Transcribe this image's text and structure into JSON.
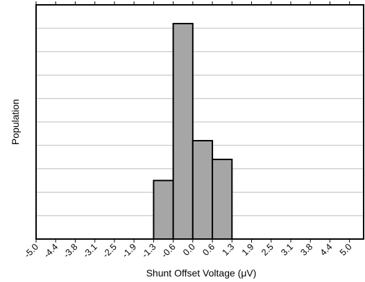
{
  "chart_data": {
    "type": "histogram",
    "xlabel": "Shunt Offset Voltage (μV)",
    "ylabel": "Population",
    "bins": [
      -5.0,
      -4.375,
      -3.75,
      -3.125,
      -2.5,
      -1.875,
      -1.25,
      -0.625,
      0.0,
      0.625,
      1.25,
      1.875,
      2.5,
      3.125,
      3.75,
      4.375,
      5.0
    ],
    "values": [
      0,
      0,
      0,
      0,
      0,
      0,
      2.5,
      9.2,
      4.2,
      3.4,
      0,
      0,
      0,
      0,
      0,
      0
    ],
    "color": "#a6a6a6",
    "xlim": [
      -5.0,
      5.45
    ],
    "xticks": [
      {
        "value": -5.0,
        "label": "-5.0"
      },
      {
        "value": -4.375,
        "label": "-4.4"
      },
      {
        "value": -3.75,
        "label": "-3.8"
      },
      {
        "value": -3.125,
        "label": "-3.1"
      },
      {
        "value": -2.5,
        "label": "-2.5"
      },
      {
        "value": -1.875,
        "label": "-1.9"
      },
      {
        "value": -1.25,
        "label": "-1.3"
      },
      {
        "value": -0.625,
        "label": "-0.6"
      },
      {
        "value": 0.0,
        "label": "0.0"
      },
      {
        "value": 0.625,
        "label": "0.6"
      },
      {
        "value": 1.25,
        "label": "1.3"
      },
      {
        "value": 1.875,
        "label": "1.9"
      },
      {
        "value": 2.5,
        "label": "2.5"
      },
      {
        "value": 3.125,
        "label": "3.1"
      },
      {
        "value": 3.75,
        "label": "3.8"
      },
      {
        "value": 4.375,
        "label": "4.4"
      },
      {
        "value": 5.0,
        "label": "5.0"
      }
    ],
    "ylim": [
      0,
      10
    ],
    "yticks": [
      0,
      1,
      2,
      3,
      4,
      5,
      6,
      7,
      8,
      9,
      10
    ],
    "grid": true
  }
}
